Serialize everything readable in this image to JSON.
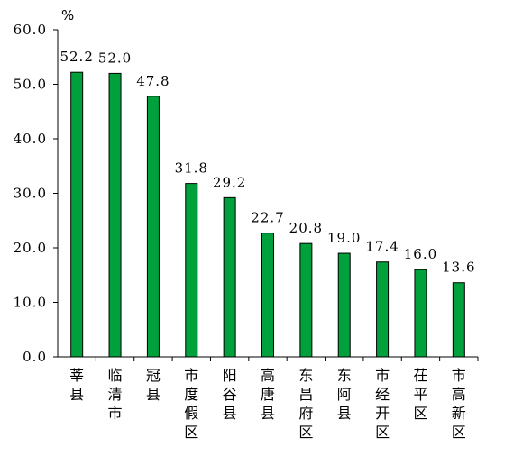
{
  "chart_data": {
    "type": "bar",
    "y_unit": "%",
    "categories": [
      "莘县",
      "临清市",
      "冠县",
      "市度假区",
      "阳谷县",
      "高唐县",
      "东昌府区",
      "东阿县",
      "市经开区",
      "茌平区",
      "市高新区"
    ],
    "values": [
      52.2,
      52.0,
      47.8,
      31.8,
      29.2,
      22.7,
      20.8,
      19.0,
      17.4,
      16.0,
      13.6
    ],
    "value_labels": [
      "52.2",
      "52.0",
      "47.8",
      "31.8",
      "29.2",
      "22.7",
      "20.8",
      "19.0",
      "17.4",
      "16.0",
      "13.6"
    ],
    "ylim": [
      0,
      60
    ],
    "yticks": [
      "0.0",
      "10.0",
      "20.0",
      "30.0",
      "40.0",
      "50.0",
      "60.0"
    ],
    "bar_color": "#00a03c",
    "grid": false,
    "legend": "none"
  }
}
